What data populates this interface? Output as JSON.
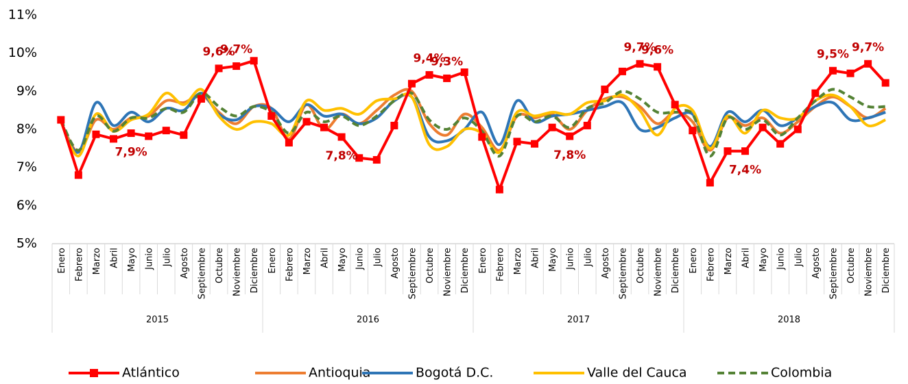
{
  "chart_data": {
    "type": "line",
    "categories": [
      "Enero",
      "Febrero",
      "Marzo",
      "Abril",
      "Mayo",
      "Junio",
      "Julio",
      "Agosto",
      "Septiembre",
      "Octubre",
      "Noviembre",
      "Diciembre",
      "Enero",
      "Febrero",
      "Marzo",
      "Abril",
      "Mayo",
      "Junio",
      "Julio",
      "Agosto",
      "Septiembre",
      "Octubre",
      "Noviembre",
      "Diciembre",
      "Enero",
      "Febrero",
      "Marzo",
      "Abril",
      "Mayo",
      "Junio",
      "Julio",
      "Agosto",
      "Septiembre",
      "Octubre",
      "Noviembre",
      "Diciembre",
      "Enero",
      "Febrero",
      "Marzo",
      "Abril",
      "Mayo",
      "Junio",
      "Julio",
      "Agosto",
      "Septiembre",
      "Octubre",
      "Noviembre",
      "Diciembre"
    ],
    "years": [
      "2015",
      "2016",
      "2017",
      "2018"
    ],
    "ylim": [
      5,
      11
    ],
    "yticks": [
      {
        "value": 5,
        "label": "5%"
      },
      {
        "value": 6,
        "label": "6%"
      },
      {
        "value": 7,
        "label": "7%"
      },
      {
        "value": 8,
        "label": "8%"
      },
      {
        "value": 9,
        "label": "9%"
      },
      {
        "value": 10,
        "label": "10%"
      },
      {
        "value": 11,
        "label": "11%"
      }
    ],
    "grid": false,
    "legend": "bottom",
    "series": [
      {
        "name": "Atlántico",
        "color": "#ff0000",
        "marker": "square",
        "dash": false,
        "smooth": false,
        "values": [
          8.25,
          6.8,
          7.87,
          7.75,
          7.9,
          7.82,
          7.97,
          7.85,
          8.8,
          9.6,
          9.66,
          9.8,
          8.35,
          7.65,
          8.2,
          8.05,
          7.8,
          7.25,
          7.2,
          8.1,
          9.2,
          9.43,
          9.34,
          9.5,
          7.8,
          6.42,
          7.68,
          7.62,
          8.05,
          7.82,
          8.1,
          9.05,
          9.52,
          9.72,
          9.64,
          8.65,
          7.97,
          6.6,
          7.43,
          7.43,
          8.05,
          7.62,
          8.0,
          8.95,
          9.54,
          9.47,
          9.72,
          9.22
        ],
        "value_labels": [
          null,
          null,
          null,
          null,
          "7,9%",
          null,
          null,
          null,
          null,
          "9,6%",
          "9,7%",
          null,
          null,
          null,
          null,
          null,
          "7,8%",
          null,
          null,
          null,
          null,
          "9,4%",
          "9,3%",
          null,
          null,
          null,
          null,
          null,
          null,
          "7,8%",
          null,
          null,
          null,
          "9,7%",
          "9,6%",
          null,
          null,
          null,
          null,
          "7,4%",
          null,
          null,
          null,
          null,
          "9,5%",
          null,
          "9,7%",
          null
        ]
      },
      {
        "name": "Antioquia",
        "color": "#ed7d31",
        "dash": false,
        "smooth": true,
        "values": [
          8.2,
          7.4,
          8.25,
          8.0,
          8.3,
          8.35,
          8.75,
          8.7,
          8.9,
          8.45,
          8.15,
          8.6,
          8.55,
          7.75,
          8.65,
          8.0,
          8.4,
          8.15,
          8.5,
          8.9,
          9.0,
          8.15,
          7.85,
          8.4,
          8.05,
          7.45,
          8.35,
          8.3,
          8.4,
          8.0,
          8.5,
          8.8,
          8.85,
          8.6,
          8.15,
          8.45,
          8.2,
          7.45,
          8.3,
          8.1,
          8.3,
          7.9,
          8.2,
          8.6,
          8.85,
          8.6,
          8.3,
          8.55
        ]
      },
      {
        "name": "Bogotá D.C.",
        "color": "#2e75b6",
        "dash": false,
        "smooth": true,
        "values": [
          8.2,
          7.4,
          8.7,
          8.1,
          8.45,
          8.2,
          8.55,
          8.5,
          8.95,
          8.4,
          8.25,
          8.6,
          8.55,
          8.2,
          8.65,
          8.35,
          8.4,
          8.15,
          8.3,
          8.75,
          8.85,
          7.8,
          7.7,
          8.0,
          8.45,
          7.6,
          8.75,
          8.2,
          8.35,
          8.4,
          8.5,
          8.6,
          8.7,
          8.0,
          8.05,
          8.3,
          8.4,
          7.55,
          8.45,
          8.2,
          8.5,
          8.1,
          8.3,
          8.6,
          8.7,
          8.25,
          8.3,
          8.45
        ]
      },
      {
        "name": "Valle del Cauca",
        "color": "#ffc000",
        "dash": false,
        "smooth": true,
        "values": [
          8.2,
          7.3,
          8.4,
          7.95,
          8.25,
          8.4,
          8.95,
          8.65,
          9.05,
          8.35,
          8.0,
          8.2,
          8.15,
          7.85,
          8.75,
          8.5,
          8.55,
          8.4,
          8.75,
          8.8,
          8.85,
          7.6,
          7.55,
          8.0,
          7.9,
          7.4,
          8.45,
          8.35,
          8.45,
          8.4,
          8.7,
          8.75,
          8.9,
          8.5,
          7.85,
          8.55,
          8.5,
          7.5,
          8.35,
          7.9,
          8.5,
          8.3,
          8.3,
          8.75,
          8.9,
          8.6,
          8.1,
          8.25
        ]
      },
      {
        "name": "Colombia",
        "color": "#548235",
        "dash": true,
        "smooth": true,
        "values": [
          8.25,
          7.45,
          8.35,
          7.95,
          8.3,
          8.3,
          8.55,
          8.45,
          8.95,
          8.6,
          8.35,
          8.6,
          8.45,
          7.9,
          8.45,
          8.2,
          8.35,
          8.1,
          8.35,
          8.75,
          8.95,
          8.25,
          8.0,
          8.3,
          7.95,
          7.3,
          8.35,
          8.2,
          8.35,
          8.05,
          8.55,
          8.7,
          9.0,
          8.8,
          8.45,
          8.45,
          8.4,
          7.3,
          8.3,
          8.0,
          8.25,
          7.85,
          8.3,
          8.75,
          9.05,
          8.85,
          8.6,
          8.6
        ]
      }
    ]
  }
}
